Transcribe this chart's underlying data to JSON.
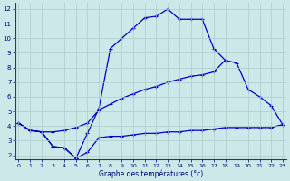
{
  "xlabel": "Graphe des températures (°c)",
  "bg_color": "#cde8e8",
  "grid_color": "#aacccc",
  "line_color": "#0000cc",
  "ylim": [
    1.7,
    12.4
  ],
  "xlim": [
    -0.3,
    23.3
  ],
  "yticks": [
    2,
    3,
    4,
    5,
    6,
    7,
    8,
    9,
    10,
    11,
    12
  ],
  "xticks": [
    0,
    1,
    2,
    3,
    4,
    5,
    6,
    7,
    8,
    9,
    10,
    11,
    12,
    13,
    14,
    15,
    16,
    17,
    18,
    19,
    20,
    21,
    22,
    23
  ],
  "line1_x": [
    0,
    1,
    2,
    3,
    4,
    5,
    6,
    7,
    8,
    9,
    10,
    11,
    12,
    13,
    14,
    15,
    16,
    17,
    18
  ],
  "line1_y": [
    4.2,
    3.7,
    3.6,
    2.6,
    2.5,
    1.8,
    3.5,
    5.2,
    9.3,
    10.0,
    10.7,
    11.4,
    11.5,
    12.0,
    11.3,
    11.3,
    11.3,
    9.3,
    8.5
  ],
  "line2_x": [
    0,
    1,
    2,
    3,
    4,
    5,
    6,
    7,
    8,
    9,
    10,
    11,
    12,
    13,
    14,
    15,
    16,
    17,
    18,
    19,
    20,
    21,
    22,
    23
  ],
  "line2_y": [
    4.2,
    3.7,
    3.6,
    3.6,
    3.7,
    3.9,
    4.2,
    5.1,
    5.5,
    5.9,
    6.2,
    6.5,
    6.7,
    7.0,
    7.2,
    7.4,
    7.5,
    7.7,
    8.5,
    8.3,
    6.5,
    6.0,
    5.4,
    4.1
  ],
  "line3_x": [
    0,
    1,
    2,
    3,
    4,
    5,
    6,
    7,
    8,
    9,
    10,
    11,
    12,
    13,
    14,
    15,
    16,
    17,
    18,
    19,
    20,
    21,
    22,
    23
  ],
  "line3_y": [
    4.2,
    3.7,
    3.6,
    2.6,
    2.5,
    1.8,
    2.2,
    3.2,
    3.3,
    3.3,
    3.4,
    3.5,
    3.5,
    3.6,
    3.6,
    3.7,
    3.7,
    3.8,
    3.9,
    3.9,
    3.9,
    3.9,
    3.9,
    4.1
  ]
}
